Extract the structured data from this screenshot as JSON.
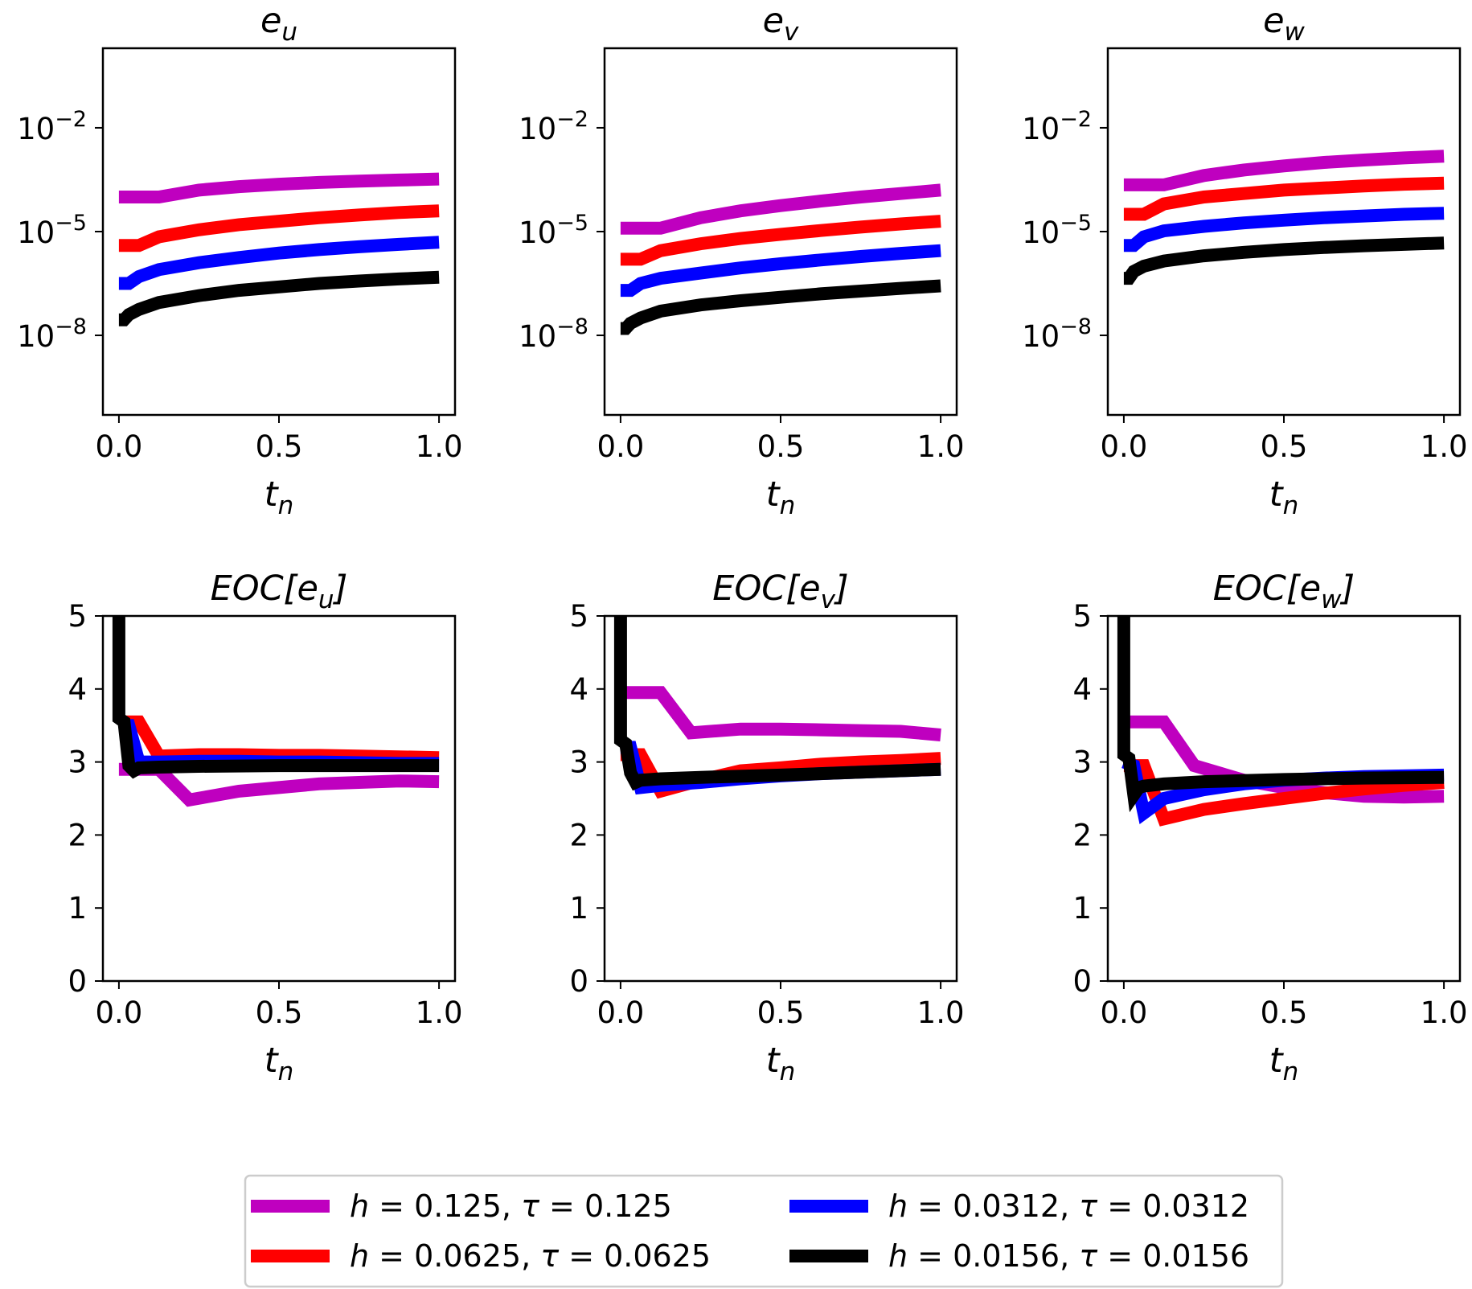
{
  "legend": [
    {
      "h": "0.125",
      "tau": "0.125",
      "color": "#bf00bf"
    },
    {
      "h": "0.0625",
      "tau": "0.0625",
      "color": "#ff0000"
    },
    {
      "h": "0.0312",
      "tau": "0.0312",
      "color": "#0000ff"
    },
    {
      "h": "0.0156",
      "tau": "0.0156",
      "color": "#000000"
    }
  ],
  "chart_data": [
    {
      "type": "line",
      "scale": "log",
      "title": {
        "main": "e",
        "sub": "u"
      },
      "xlabel": {
        "main": "t",
        "sub": "n"
      },
      "xlim": [
        -0.05,
        1.05
      ],
      "ylim_exp": [
        -10.3,
        0.3
      ],
      "xticks": [
        "0.0",
        "0.5",
        "1.0"
      ],
      "yticks": [
        {
          "base": "10",
          "exp": "−2",
          "value": -2
        },
        {
          "base": "10",
          "exp": "−5",
          "value": -5
        },
        {
          "base": "10",
          "exp": "−8",
          "value": -8
        }
      ],
      "series": [
        {
          "name": "h=0.125, τ=0.125",
          "color": "#bf00bf",
          "x": [
            0,
            0.125,
            0.25,
            0.375,
            0.5,
            0.625,
            0.75,
            0.875,
            1.0
          ],
          "log10": [
            -4.0,
            -4.0,
            -3.8,
            -3.7,
            -3.63,
            -3.58,
            -3.54,
            -3.51,
            -3.48
          ]
        },
        {
          "name": "h=0.0625, τ=0.0625",
          "color": "#ff0000",
          "x": [
            0,
            0.0625,
            0.125,
            0.25,
            0.375,
            0.5,
            0.625,
            0.75,
            0.875,
            1.0
          ],
          "log10": [
            -5.4,
            -5.4,
            -5.15,
            -4.95,
            -4.8,
            -4.7,
            -4.6,
            -4.52,
            -4.45,
            -4.4
          ]
        },
        {
          "name": "h=0.0312, τ=0.0312",
          "color": "#0000ff",
          "x": [
            0,
            0.031,
            0.0625,
            0.125,
            0.25,
            0.375,
            0.5,
            0.625,
            0.75,
            0.875,
            1.0
          ],
          "log10": [
            -6.5,
            -6.5,
            -6.3,
            -6.1,
            -5.9,
            -5.75,
            -5.62,
            -5.52,
            -5.44,
            -5.37,
            -5.31
          ]
        },
        {
          "name": "h=0.0156, τ=0.0156",
          "color": "#000000",
          "x": [
            0,
            0.016,
            0.031,
            0.0625,
            0.125,
            0.25,
            0.375,
            0.5,
            0.625,
            0.75,
            0.875,
            1.0
          ],
          "log10": [
            -7.55,
            -7.55,
            -7.4,
            -7.25,
            -7.05,
            -6.85,
            -6.7,
            -6.6,
            -6.5,
            -6.43,
            -6.37,
            -6.32
          ]
        }
      ]
    },
    {
      "type": "line",
      "scale": "log",
      "title": {
        "main": "e",
        "sub": "v"
      },
      "xlabel": {
        "main": "t",
        "sub": "n"
      },
      "xlim": [
        -0.05,
        1.05
      ],
      "ylim_exp": [
        -10.3,
        0.3
      ],
      "xticks": [
        "0.0",
        "0.5",
        "1.0"
      ],
      "yticks": [
        {
          "base": "10",
          "exp": "−2",
          "value": -2
        },
        {
          "base": "10",
          "exp": "−5",
          "value": -5
        },
        {
          "base": "10",
          "exp": "−8",
          "value": -8
        }
      ],
      "series": [
        {
          "name": "h=0.125, τ=0.125",
          "color": "#bf00bf",
          "x": [
            0,
            0.125,
            0.25,
            0.375,
            0.5,
            0.625,
            0.75,
            0.875,
            1.0
          ],
          "log10": [
            -4.9,
            -4.9,
            -4.6,
            -4.4,
            -4.25,
            -4.12,
            -4.0,
            -3.9,
            -3.8
          ]
        },
        {
          "name": "h=0.0625, τ=0.0625",
          "color": "#ff0000",
          "x": [
            0,
            0.0625,
            0.125,
            0.25,
            0.375,
            0.5,
            0.625,
            0.75,
            0.875,
            1.0
          ],
          "log10": [
            -5.8,
            -5.8,
            -5.55,
            -5.35,
            -5.2,
            -5.08,
            -4.97,
            -4.87,
            -4.78,
            -4.7
          ]
        },
        {
          "name": "h=0.0312, τ=0.0312",
          "color": "#0000ff",
          "x": [
            0,
            0.031,
            0.0625,
            0.125,
            0.25,
            0.375,
            0.5,
            0.625,
            0.75,
            0.875,
            1.0
          ],
          "log10": [
            -6.7,
            -6.7,
            -6.5,
            -6.35,
            -6.2,
            -6.05,
            -5.93,
            -5.82,
            -5.72,
            -5.63,
            -5.55
          ]
        },
        {
          "name": "h=0.0156, τ=0.0156",
          "color": "#000000",
          "x": [
            0,
            0.016,
            0.031,
            0.0625,
            0.125,
            0.25,
            0.375,
            0.5,
            0.625,
            0.75,
            0.875,
            1.0
          ],
          "log10": [
            -7.8,
            -7.8,
            -7.65,
            -7.5,
            -7.3,
            -7.12,
            -7.0,
            -6.9,
            -6.8,
            -6.72,
            -6.64,
            -6.57
          ]
        }
      ]
    },
    {
      "type": "line",
      "scale": "log",
      "title": {
        "main": "e",
        "sub": "w"
      },
      "xlabel": {
        "main": "t",
        "sub": "n"
      },
      "xlim": [
        -0.05,
        1.05
      ],
      "ylim_exp": [
        -10.3,
        0.3
      ],
      "xticks": [
        "0.0",
        "0.5",
        "1.0"
      ],
      "yticks": [
        {
          "base": "10",
          "exp": "−2",
          "value": -2
        },
        {
          "base": "10",
          "exp": "−5",
          "value": -5
        },
        {
          "base": "10",
          "exp": "−8",
          "value": -8
        }
      ],
      "series": [
        {
          "name": "h=0.125, τ=0.125",
          "color": "#bf00bf",
          "x": [
            0,
            0.125,
            0.25,
            0.375,
            0.5,
            0.625,
            0.75,
            0.875,
            1.0
          ],
          "log10": [
            -3.65,
            -3.65,
            -3.38,
            -3.22,
            -3.1,
            -3.0,
            -2.93,
            -2.87,
            -2.82
          ]
        },
        {
          "name": "h=0.0625, τ=0.0625",
          "color": "#ff0000",
          "x": [
            0,
            0.0625,
            0.125,
            0.25,
            0.375,
            0.5,
            0.625,
            0.75,
            0.875,
            1.0
          ],
          "log10": [
            -4.5,
            -4.5,
            -4.2,
            -4.0,
            -3.9,
            -3.8,
            -3.74,
            -3.68,
            -3.63,
            -3.6
          ]
        },
        {
          "name": "h=0.0312, τ=0.0312",
          "color": "#0000ff",
          "x": [
            0,
            0.031,
            0.0625,
            0.125,
            0.25,
            0.375,
            0.5,
            0.625,
            0.75,
            0.875,
            1.0
          ],
          "log10": [
            -5.4,
            -5.4,
            -5.15,
            -4.98,
            -4.85,
            -4.75,
            -4.67,
            -4.6,
            -4.55,
            -4.5,
            -4.47
          ]
        },
        {
          "name": "h=0.0156, τ=0.0156",
          "color": "#000000",
          "x": [
            0,
            0.016,
            0.031,
            0.0625,
            0.125,
            0.25,
            0.375,
            0.5,
            0.625,
            0.75,
            0.875,
            1.0
          ],
          "log10": [
            -6.35,
            -6.35,
            -6.15,
            -6.0,
            -5.85,
            -5.7,
            -5.6,
            -5.52,
            -5.46,
            -5.41,
            -5.37,
            -5.33
          ]
        }
      ]
    },
    {
      "type": "line",
      "scale": "linear",
      "title": {
        "pre": "EOC[e",
        "sub": "u",
        "post": "]"
      },
      "xlabel": {
        "main": "t",
        "sub": "n"
      },
      "xlim": [
        -0.05,
        1.05
      ],
      "ylim": [
        0,
        5
      ],
      "xticks": [
        "0.0",
        "0.5",
        "1.0"
      ],
      "yticks": [
        "0",
        "1",
        "2",
        "3",
        "4",
        "5"
      ],
      "series": [
        {
          "name": "h=0.125, τ=0.125",
          "color": "#bf00bf",
          "x": [
            0,
            0.125,
            0.22,
            0.375,
            0.5,
            0.625,
            0.75,
            0.875,
            1.0
          ],
          "y": [
            2.9,
            2.9,
            2.48,
            2.6,
            2.65,
            2.7,
            2.72,
            2.74,
            2.73
          ]
        },
        {
          "name": "h=0.0625, τ=0.0625",
          "color": "#ff0000",
          "x": [
            0,
            0.0625,
            0.125,
            0.25,
            0.375,
            0.5,
            0.625,
            0.75,
            0.875,
            1.0
          ],
          "y": [
            3.55,
            3.55,
            3.08,
            3.1,
            3.1,
            3.09,
            3.09,
            3.08,
            3.07,
            3.06
          ]
        },
        {
          "name": "h=0.0312, τ=0.0312",
          "color": "#0000ff",
          "x": [
            0,
            0.031,
            0.0625,
            0.125,
            0.25,
            0.375,
            0.5,
            0.625,
            0.75,
            0.875,
            1.0
          ],
          "y": [
            3.5,
            3.5,
            3.0,
            3.0,
            3.01,
            3.01,
            3.0,
            3.0,
            2.99,
            2.98,
            2.98
          ]
        },
        {
          "name": "h=0.0156, τ=0.0156",
          "color": "#000000",
          "x": [
            0,
            0.0,
            0.016,
            0.031,
            0.047,
            0.0625,
            0.125,
            0.25,
            0.5,
            0.75,
            1.0
          ],
          "y": [
            5.2,
            3.6,
            3.55,
            2.95,
            2.88,
            2.92,
            2.93,
            2.94,
            2.95,
            2.95,
            2.95
          ]
        }
      ]
    },
    {
      "type": "line",
      "scale": "linear",
      "title": {
        "pre": "EOC[e",
        "sub": "v",
        "post": "]"
      },
      "xlabel": {
        "main": "t",
        "sub": "n"
      },
      "xlim": [
        -0.05,
        1.05
      ],
      "ylim": [
        0,
        5
      ],
      "xticks": [
        "0.0",
        "0.5",
        "1.0"
      ],
      "yticks": [
        "0",
        "1",
        "2",
        "3",
        "4",
        "5"
      ],
      "series": [
        {
          "name": "h=0.125, τ=0.125",
          "color": "#bf00bf",
          "x": [
            0,
            0.125,
            0.22,
            0.375,
            0.5,
            0.625,
            0.75,
            0.875,
            1.0
          ],
          "y": [
            3.95,
            3.95,
            3.4,
            3.45,
            3.45,
            3.44,
            3.43,
            3.42,
            3.37
          ]
        },
        {
          "name": "h=0.0625, τ=0.0625",
          "color": "#ff0000",
          "x": [
            0,
            0.0625,
            0.125,
            0.25,
            0.375,
            0.5,
            0.625,
            0.75,
            0.875,
            1.0
          ],
          "y": [
            3.1,
            3.1,
            2.6,
            2.75,
            2.88,
            2.92,
            2.97,
            3.0,
            3.02,
            3.05
          ]
        },
        {
          "name": "h=0.0312, τ=0.0312",
          "color": "#0000ff",
          "x": [
            0,
            0.031,
            0.0625,
            0.125,
            0.25,
            0.375,
            0.5,
            0.625,
            0.75,
            0.875,
            1.0
          ],
          "y": [
            3.2,
            3.2,
            2.65,
            2.68,
            2.72,
            2.77,
            2.81,
            2.84,
            2.86,
            2.88,
            2.9
          ]
        },
        {
          "name": "h=0.0156, τ=0.0156",
          "color": "#000000",
          "x": [
            0,
            0.0,
            0.016,
            0.031,
            0.047,
            0.0625,
            0.125,
            0.25,
            0.5,
            0.75,
            1.0
          ],
          "y": [
            5.2,
            3.3,
            3.25,
            2.85,
            2.72,
            2.75,
            2.77,
            2.79,
            2.82,
            2.86,
            2.9
          ]
        }
      ]
    },
    {
      "type": "line",
      "scale": "linear",
      "title": {
        "pre": "EOC[e",
        "sub": "w",
        "post": "]"
      },
      "xlabel": {
        "main": "t",
        "sub": "n"
      },
      "xlim": [
        -0.05,
        1.05
      ],
      "ylim": [
        0,
        5
      ],
      "xticks": [
        "0.0",
        "0.5",
        "1.0"
      ],
      "yticks": [
        "0",
        "1",
        "2",
        "3",
        "4",
        "5"
      ],
      "series": [
        {
          "name": "h=0.125, τ=0.125",
          "color": "#bf00bf",
          "x": [
            0,
            0.125,
            0.22,
            0.375,
            0.5,
            0.625,
            0.75,
            0.875,
            1.0
          ],
          "y": [
            3.55,
            3.55,
            2.95,
            2.75,
            2.65,
            2.58,
            2.53,
            2.52,
            2.53
          ]
        },
        {
          "name": "h=0.0625, τ=0.0625",
          "color": "#ff0000",
          "x": [
            0,
            0.0625,
            0.125,
            0.25,
            0.375,
            0.5,
            0.625,
            0.75,
            0.875,
            1.0
          ],
          "y": [
            2.95,
            2.95,
            2.22,
            2.35,
            2.43,
            2.5,
            2.57,
            2.63,
            2.68,
            2.72
          ]
        },
        {
          "name": "h=0.0312, τ=0.0312",
          "color": "#0000ff",
          "x": [
            0,
            0.031,
            0.0625,
            0.125,
            0.25,
            0.375,
            0.5,
            0.625,
            0.75,
            0.875,
            1.0
          ],
          "y": [
            3.0,
            2.95,
            2.3,
            2.5,
            2.62,
            2.7,
            2.75,
            2.78,
            2.8,
            2.81,
            2.82
          ]
        },
        {
          "name": "h=0.0156, τ=0.0156",
          "color": "#000000",
          "x": [
            0,
            0.0,
            0.016,
            0.031,
            0.047,
            0.0625,
            0.125,
            0.25,
            0.5,
            0.75,
            1.0
          ],
          "y": [
            5.2,
            3.1,
            3.05,
            2.55,
            2.65,
            2.67,
            2.7,
            2.73,
            2.76,
            2.78,
            2.79
          ]
        }
      ]
    }
  ]
}
